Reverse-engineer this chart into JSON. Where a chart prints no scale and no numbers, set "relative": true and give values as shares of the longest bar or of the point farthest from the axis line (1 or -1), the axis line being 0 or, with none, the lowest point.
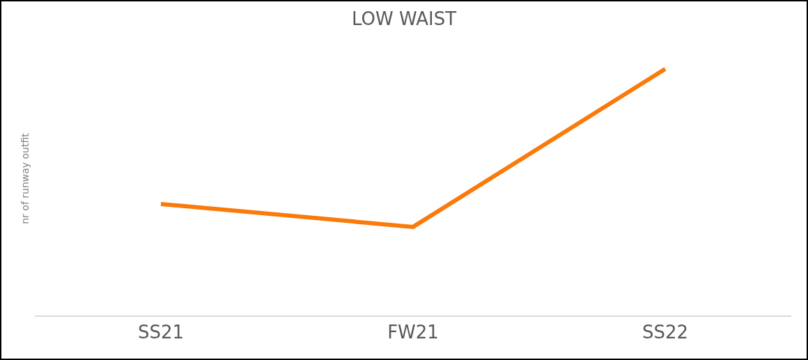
{
  "chart_data": {
    "type": "line",
    "title": "LOW WAIST",
    "ylabel": "nr of runway outfit",
    "categories": [
      "SS21",
      "FW21",
      "SS22"
    ],
    "relative": true,
    "series": [
      {
        "color": "#fa7a0a",
        "values": [
          0.452,
          0.359,
          1
        ]
      }
    ],
    "grid": false,
    "marker": "none",
    "line_style": "solid"
  }
}
